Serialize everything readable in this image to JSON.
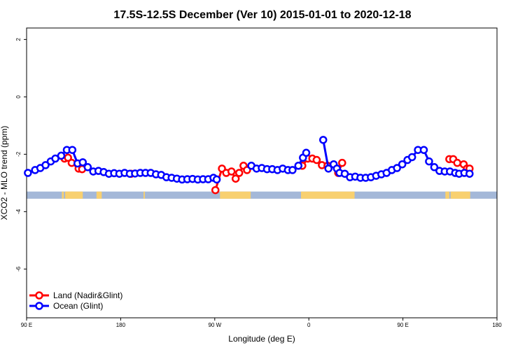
{
  "chart_data": {
    "type": "line",
    "title": "17.5S-12.5S December (Ver 10)   2015-01-01 to 2020-12-18",
    "xlabel": "Longitude (deg E)",
    "ylabel": "XCO2 - MLO trend (ppm)",
    "xlim": [
      90,
      450
    ],
    "ylim": [
      -7.7,
      2.4
    ],
    "x_ticks": [
      90,
      162,
      234,
      306,
      378,
      450
    ],
    "x_tick_labels": [
      "90 E",
      "180",
      "90 W",
      "0",
      "90 E",
      "180"
    ],
    "y_ticks": [
      2,
      0,
      -2,
      -4,
      -6
    ],
    "y_tick_labels": [
      "2",
      "0",
      "-2",
      "-4",
      "-6"
    ],
    "grid": false,
    "legend": "bottom-left",
    "colors": {
      "land": "#ff0000",
      "ocean": "#0000ff",
      "strip_ocean": "#a4b8d8",
      "strip_land": "#f8d070"
    },
    "land_mask": {
      "y_range": [
        -3.55,
        -3.3
      ],
      "segments": [
        [
          117,
          118.5
        ],
        [
          119.5,
          121
        ],
        [
          120.5,
          126
        ],
        [
          123.5,
          133
        ],
        [
          143.5,
          147.5
        ],
        [
          179.5,
          180.5
        ],
        [
          238,
          261.5
        ],
        [
          300,
          341
        ],
        [
          410.5,
          413.5
        ],
        [
          414.5,
          424
        ],
        [
          422.5,
          429.5
        ]
      ]
    },
    "series": [
      {
        "name": "Land (Nadir&Glint)",
        "color": "#ff0000",
        "points": [
          [
            119,
            -2.15
          ],
          [
            121.7,
            -2.12
          ],
          [
            124.5,
            -2.3
          ],
          [
            129.8,
            -2.5
          ],
          [
            132.5,
            -2.52
          ],
          [
            170,
            -2.68
          ],
          [
            234.5,
            -3.25
          ],
          [
            239.5,
            -2.5
          ],
          [
            242.8,
            -2.65
          ],
          [
            246.8,
            -2.6
          ],
          [
            250,
            -2.85
          ],
          [
            252.7,
            -2.65
          ],
          [
            256,
            -2.4
          ],
          [
            258.7,
            -2.55
          ],
          [
            301,
            -2.4
          ],
          [
            305.2,
            -2.15
          ],
          [
            308.7,
            -2.15
          ],
          [
            312,
            -2.2
          ],
          [
            316,
            -2.38
          ],
          [
            320.3,
            -2.4
          ],
          [
            328.5,
            -2.65
          ],
          [
            331.5,
            -2.3
          ],
          [
            413.5,
            -2.17
          ],
          [
            416.5,
            -2.17
          ],
          [
            419.6,
            -2.3
          ],
          [
            424.5,
            -2.35
          ],
          [
            427,
            -2.5
          ],
          [
            429,
            -2.5
          ]
        ]
      },
      {
        "name": "Ocean (Glint)",
        "color": "#0000ff",
        "points": [
          [
            91,
            -2.65
          ],
          [
            96.5,
            -2.55
          ],
          [
            100.5,
            -2.48
          ],
          [
            104.5,
            -2.38
          ],
          [
            108.5,
            -2.25
          ],
          [
            112,
            -2.15
          ],
          [
            116.5,
            -2.05
          ],
          [
            120.8,
            -1.85
          ],
          [
            125,
            -1.85
          ],
          [
            129,
            -2.32
          ],
          [
            133,
            -2.28
          ],
          [
            136.8,
            -2.45
          ],
          [
            141,
            -2.6
          ],
          [
            145,
            -2.58
          ],
          [
            149,
            -2.62
          ],
          [
            153,
            -2.68
          ],
          [
            157,
            -2.66
          ],
          [
            161,
            -2.68
          ],
          [
            165,
            -2.65
          ],
          [
            169,
            -2.68
          ],
          [
            173,
            -2.67
          ],
          [
            177,
            -2.65
          ],
          [
            181,
            -2.65
          ],
          [
            185,
            -2.65
          ],
          [
            189,
            -2.7
          ],
          [
            193,
            -2.72
          ],
          [
            197,
            -2.8
          ],
          [
            201,
            -2.82
          ],
          [
            205,
            -2.85
          ],
          [
            209,
            -2.88
          ],
          [
            213,
            -2.87
          ],
          [
            217,
            -2.86
          ],
          [
            221,
            -2.88
          ],
          [
            225,
            -2.87
          ],
          [
            229,
            -2.87
          ],
          [
            233,
            -2.82
          ],
          [
            235.5,
            -2.88
          ],
          [
            262,
            -2.4
          ],
          [
            266,
            -2.5
          ],
          [
            270,
            -2.48
          ],
          [
            274,
            -2.52
          ],
          [
            278,
            -2.52
          ],
          [
            282,
            -2.55
          ],
          [
            286,
            -2.5
          ],
          [
            290,
            -2.55
          ],
          [
            293.5,
            -2.55
          ],
          [
            298,
            -2.4
          ],
          [
            301.5,
            -2.12
          ],
          [
            304,
            -1.95
          ],
          [
            317,
            -1.5
          ],
          [
            321,
            -2.5
          ],
          [
            325,
            -2.35
          ],
          [
            327.5,
            -2.5
          ],
          [
            329.5,
            -2.65
          ],
          [
            333.5,
            -2.68
          ],
          [
            337.5,
            -2.8
          ],
          [
            341.5,
            -2.78
          ],
          [
            345.5,
            -2.82
          ],
          [
            349.5,
            -2.82
          ],
          [
            353.5,
            -2.8
          ],
          [
            357.5,
            -2.75
          ],
          [
            361.5,
            -2.7
          ],
          [
            365.5,
            -2.65
          ],
          [
            369.5,
            -2.55
          ],
          [
            373.5,
            -2.48
          ],
          [
            377.5,
            -2.35
          ],
          [
            381.5,
            -2.2
          ],
          [
            385,
            -2.1
          ],
          [
            389.5,
            -1.85
          ],
          [
            394,
            -1.85
          ],
          [
            398,
            -2.25
          ],
          [
            402,
            -2.45
          ],
          [
            406,
            -2.58
          ],
          [
            410,
            -2.6
          ],
          [
            414,
            -2.6
          ],
          [
            418,
            -2.65
          ],
          [
            421,
            -2.68
          ],
          [
            425,
            -2.65
          ],
          [
            429,
            -2.68
          ]
        ]
      }
    ]
  }
}
